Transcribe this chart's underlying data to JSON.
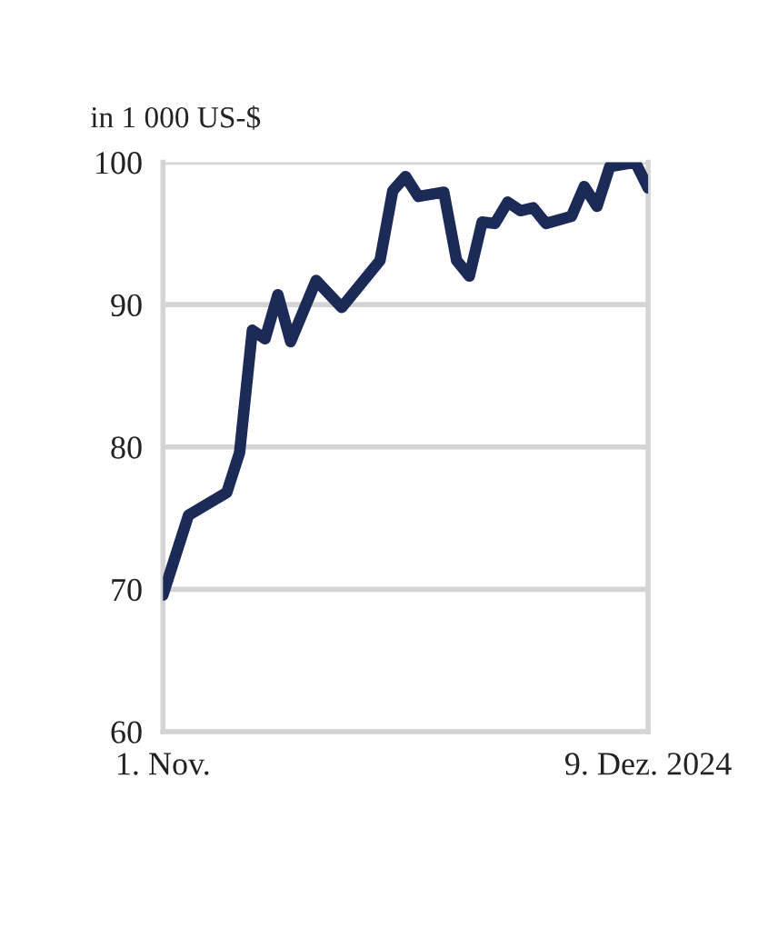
{
  "chart_data": {
    "type": "line",
    "ylabel": "in 1 000 US-$",
    "x": [
      "2024-11-01",
      "2024-11-03",
      "2024-11-06",
      "2024-11-07",
      "2024-11-08",
      "2024-11-09",
      "2024-11-10",
      "2024-11-11",
      "2024-11-13",
      "2024-11-15",
      "2024-11-18",
      "2024-11-19",
      "2024-11-20",
      "2024-11-21",
      "2024-11-23",
      "2024-11-24",
      "2024-11-25",
      "2024-11-26",
      "2024-11-27",
      "2024-11-28",
      "2024-11-29",
      "2024-11-30",
      "2024-12-01",
      "2024-12-03",
      "2024-12-04",
      "2024-12-05",
      "2024-12-06",
      "2024-12-08",
      "2024-12-09"
    ],
    "series": [
      {
        "color": "#1b2a57",
        "values": [
          69.6,
          75.2,
          76.8,
          79.6,
          88.2,
          87.6,
          90.7,
          87.4,
          91.7,
          89.8,
          93.1,
          98.0,
          99.0,
          97.6,
          97.9,
          93.1,
          92.0,
          95.8,
          95.7,
          97.2,
          96.6,
          96.8,
          95.7,
          96.2,
          98.3,
          96.9,
          99.7,
          100.0,
          98.2
        ]
      }
    ],
    "xlim": [
      "2024-11-01",
      "2024-12-09"
    ],
    "xticks": [
      {
        "value": "2024-11-01",
        "label": "1. Nov."
      },
      {
        "value": "2024-12-09",
        "label": "9. Dez. 2024"
      }
    ],
    "ylim": [
      60,
      100
    ],
    "yticks": [
      60,
      70,
      80,
      90,
      100
    ],
    "grid": "y",
    "marker": "none",
    "line_style": "solid"
  }
}
